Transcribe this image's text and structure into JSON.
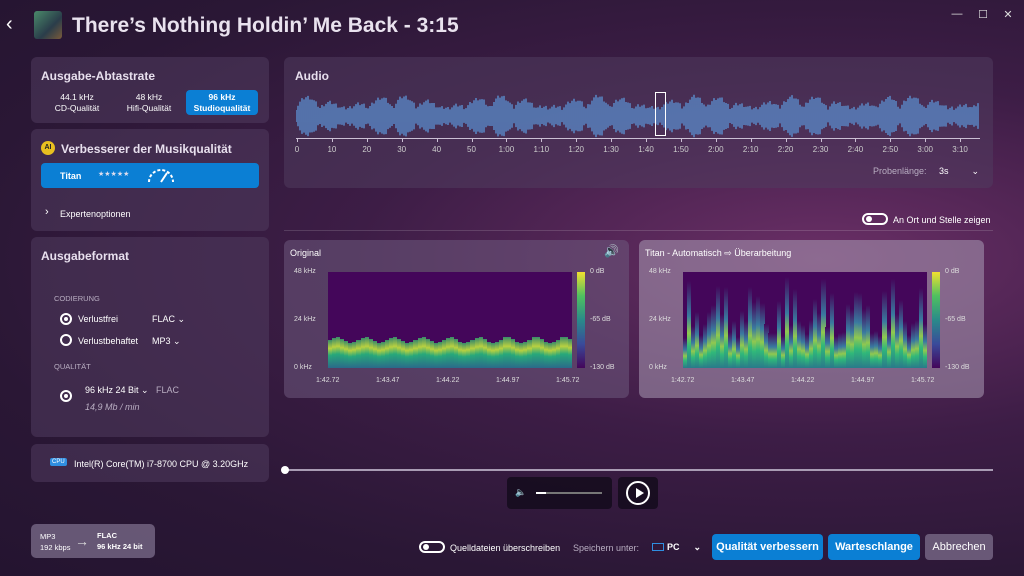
{
  "header": {
    "title": "There’s Nothing Holdin’ Me Back - 3:15"
  },
  "sample_rate": {
    "title": "Ausgabe-Abtastrate",
    "options": [
      {
        "rate": "44.1 kHz",
        "quality": "CD-Qualität"
      },
      {
        "rate": "48 kHz",
        "quality": "Hifi-Qualität"
      },
      {
        "rate": "96 kHz",
        "quality": "Studioqualität",
        "selected": true
      }
    ]
  },
  "enhancer": {
    "badge": "AI",
    "title": "Verbesserer der Musikqualität",
    "model": "Titan",
    "stars": "★★★★★",
    "expert": "Expertenoptionen"
  },
  "format": {
    "title": "Ausgabeformat",
    "coding_label": "CODIERUNG",
    "lossless": "Verlustfrei",
    "lossless_fmt": "FLAC",
    "lossy": "Verlustbehaftet",
    "lossy_fmt": "MP3",
    "quality_label": "QUALITÄT",
    "quality_value": "96 kHz 24 Bit",
    "quality_fmt": "FLAC",
    "bitrate": "14,9 Mb / min"
  },
  "cpu": {
    "badge": "CPU",
    "name": "Intel(R) Core(TM) i7-8700 CPU @ 3.20GHz"
  },
  "audio": {
    "title": "Audio",
    "ticks": [
      "0",
      "10",
      "20",
      "30",
      "40",
      "50",
      "1:00",
      "1:10",
      "1:20",
      "1:30",
      "1:40",
      "1:50",
      "2:00",
      "2:10",
      "2:20",
      "2:30",
      "2:40",
      "2:50",
      "3:00",
      "3:10"
    ],
    "sample_len_label": "Probenlänge:",
    "sample_len": "3s"
  },
  "show_location": "An Ort und Stelle zeigen",
  "spectro_left": {
    "title": "Original",
    "y": [
      "48 kHz",
      "24 kHz",
      "0 kHz"
    ],
    "db": [
      "0 dB",
      "-65 dB",
      "-130 dB"
    ],
    "x": [
      "1:42.72",
      "1:43.47",
      "1:44.22",
      "1:44.97",
      "1:45.72"
    ]
  },
  "spectro_right": {
    "title": "Titan - Automatisch ⇨ Überarbeitung",
    "y": [
      "48 kHz",
      "24 kHz",
      "0 kHz"
    ],
    "db": [
      "0 dB",
      "-65 dB",
      "-130 dB"
    ],
    "x": [
      "1:42.72",
      "1:43.47",
      "1:44.22",
      "1:44.97",
      "1:45.72"
    ]
  },
  "conversion": {
    "from_fmt": "MP3",
    "from_rate": "192 kbps",
    "to_fmt": "FLAC",
    "to_rate": "96 kHz 24 bit"
  },
  "footer": {
    "overwrite": "Quelldateien überschreiben",
    "save_label": "Speichern unter:",
    "save_target": "PC",
    "improve": "Qualität verbessern",
    "queue": "Warteschlange",
    "cancel": "Abbrechen"
  },
  "colors": {
    "accent": "#0b7fd4",
    "waveform": "#5b8fd0"
  }
}
